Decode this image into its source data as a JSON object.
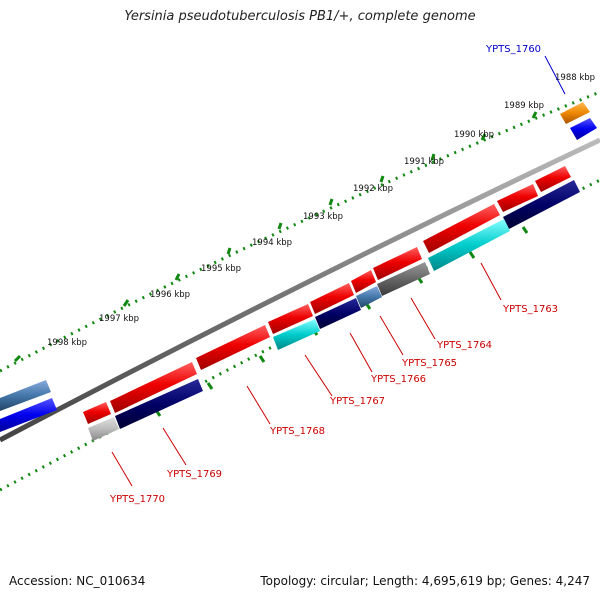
{
  "title": "Yersinia pseudotuberculosis PB1/+, complete genome",
  "footer": {
    "accession": "Accession: NC_010634",
    "topology": "Topology: circular; ",
    "length": "Length: 4,695,619 bp; ",
    "genes": "Genes: 4,247"
  },
  "scale_labels": [
    "1988 kbp",
    "1989 kbp",
    "1990 kbp",
    "1991 kbp",
    "1992 kbp",
    "1993 kbp",
    "1994 kbp",
    "1995 kbp",
    "1996 kbp",
    "1997 kbp",
    "1998 kbp"
  ],
  "gene_labels": [
    {
      "name": "YPTS_1760",
      "color": "#0000cc"
    },
    {
      "name": "YPTS_1763",
      "color": "#cc0000"
    },
    {
      "name": "YPTS_1764",
      "color": "#cc0000"
    },
    {
      "name": "YPTS_1765",
      "color": "#cc0000"
    },
    {
      "name": "YPTS_1766",
      "color": "#cc0000"
    },
    {
      "name": "YPTS_1767",
      "color": "#cc0000"
    },
    {
      "name": "YPTS_1768",
      "color": "#cc0000"
    },
    {
      "name": "YPTS_1769",
      "color": "#cc0000"
    },
    {
      "name": "YPTS_1770",
      "color": "#cc0000"
    }
  ],
  "colors": {
    "red": "#ee0000",
    "navy": "#000066",
    "cyan": "#00cccc",
    "gray": "#666666",
    "lightgray": "#bbbbbb",
    "blue": "#0000ee",
    "steelblue": "#4477aa",
    "orange": "#ee8800",
    "backbone": "#888888",
    "ticks": "#118811"
  }
}
